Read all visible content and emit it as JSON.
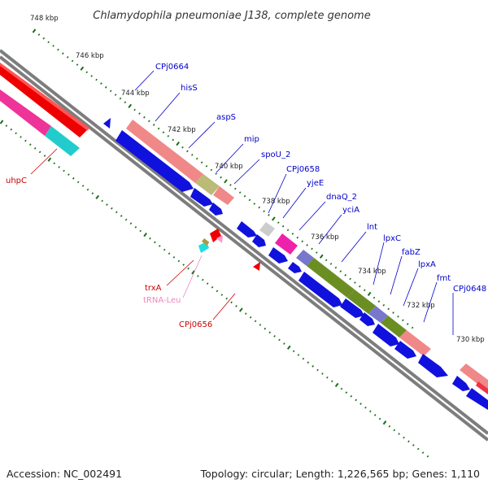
{
  "title": "Chlamydophila pneumoniae J138, complete genome",
  "footer": {
    "accession": "Accession: NC_002491",
    "summary": "Topology: circular; Length: 1,226,565 bp; Genes: 1,110"
  },
  "colors": {
    "backbone": "#808080",
    "tick": "#1a6e1a",
    "forward_label": "#0000cc",
    "reverse_label": "#cc0000",
    "trna_label": "#ee88bb"
  },
  "ruler_labels": [
    "748 kbp",
    "746 kbp",
    "744 kbp",
    "742 kbp",
    "740 kbp",
    "738 kbp",
    "736 kbp",
    "734 kbp",
    "732 kbp",
    "730 kbp"
  ],
  "gene_labels": {
    "forward": [
      "CPj0664",
      "hisS",
      "aspS",
      "mip",
      "spoU_2",
      "CPj0658",
      "yjeE",
      "dnaQ_2",
      "yciA",
      "lnt",
      "lpxC",
      "fabZ",
      "lpxA",
      "fmt",
      "CPj0648"
    ],
    "reverse": [
      "uhpC",
      "trxA",
      "tRNA-Leu",
      "CPj0656"
    ]
  }
}
